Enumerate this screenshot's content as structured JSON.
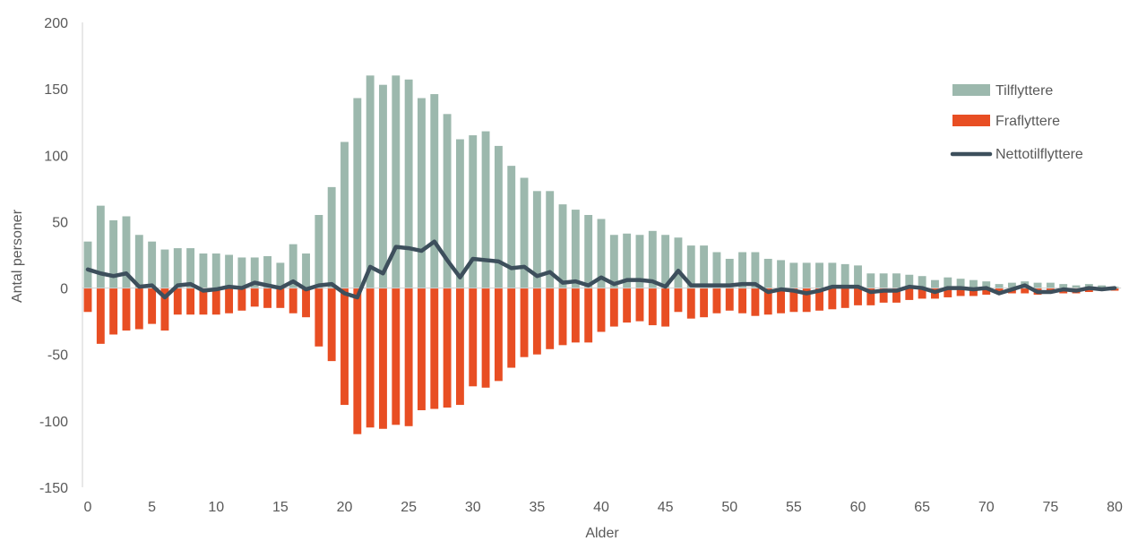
{
  "chart_data": {
    "type": "bar",
    "xlabel": "Alder",
    "ylabel": "Antal personer",
    "ylim": [
      -150,
      200
    ],
    "yticks": [
      -150,
      -100,
      -50,
      0,
      50,
      100,
      150,
      200
    ],
    "xticks": [
      0,
      5,
      10,
      15,
      20,
      25,
      30,
      35,
      40,
      45,
      50,
      55,
      60,
      65,
      70,
      75,
      80
    ],
    "x": [
      0,
      1,
      2,
      3,
      4,
      5,
      6,
      7,
      8,
      9,
      10,
      11,
      12,
      13,
      14,
      15,
      16,
      17,
      18,
      19,
      20,
      21,
      22,
      23,
      24,
      25,
      26,
      27,
      28,
      29,
      30,
      31,
      32,
      33,
      34,
      35,
      36,
      37,
      38,
      39,
      40,
      41,
      42,
      43,
      44,
      45,
      46,
      47,
      48,
      49,
      50,
      51,
      52,
      53,
      54,
      55,
      56,
      57,
      58,
      59,
      60,
      61,
      62,
      63,
      64,
      65,
      66,
      67,
      68,
      69,
      70,
      71,
      72,
      73,
      74,
      75,
      76,
      77,
      78,
      79,
      80
    ],
    "legend_position": "right",
    "grid": false,
    "series": [
      {
        "name": "Tilflyttere",
        "type": "bar",
        "color": "#9cb8ad",
        "values": [
          35,
          62,
          51,
          54,
          40,
          35,
          29,
          30,
          30,
          26,
          26,
          25,
          23,
          23,
          24,
          19,
          33,
          26,
          55,
          76,
          110,
          143,
          160,
          153,
          160,
          157,
          143,
          146,
          131,
          112,
          115,
          118,
          107,
          92,
          83,
          73,
          73,
          63,
          59,
          55,
          52,
          40,
          41,
          40,
          43,
          40,
          38,
          32,
          32,
          27,
          22,
          27,
          27,
          22,
          21,
          19,
          19,
          19,
          19,
          18,
          17,
          11,
          11,
          11,
          10,
          9,
          6,
          8,
          7,
          6,
          5,
          3,
          4,
          5,
          4,
          4,
          3,
          2,
          3,
          2,
          1
        ]
      },
      {
        "name": "Fraflyttere",
        "type": "bar",
        "color": "#e84e23",
        "values": [
          -18,
          -42,
          -35,
          -32,
          -31,
          -27,
          -32,
          -20,
          -20,
          -20,
          -20,
          -19,
          -17,
          -14,
          -15,
          -15,
          -19,
          -22,
          -44,
          -55,
          -88,
          -110,
          -105,
          -106,
          -103,
          -104,
          -92,
          -91,
          -90,
          -88,
          -74,
          -75,
          -70,
          -60,
          -52,
          -50,
          -46,
          -43,
          -41,
          -41,
          -33,
          -29,
          -26,
          -25,
          -28,
          -29,
          -18,
          -23,
          -22,
          -19,
          -17,
          -19,
          -21,
          -20,
          -19,
          -18,
          -18,
          -17,
          -16,
          -15,
          -13,
          -13,
          -11,
          -11,
          -9,
          -8,
          -8,
          -7,
          -6,
          -6,
          -5,
          -4,
          -4,
          -4,
          -5,
          -4,
          -4,
          -4,
          -3,
          -2,
          -2
        ]
      },
      {
        "name": "Nettotilflyttere",
        "type": "line",
        "color": "#3d4f5c",
        "values": [
          14,
          11,
          9,
          11,
          1,
          2,
          -7,
          2,
          3,
          -2,
          -1,
          1,
          0,
          4,
          2,
          0,
          5,
          -1,
          2,
          3,
          -4,
          -7,
          16,
          11,
          31,
          30,
          28,
          35,
          21,
          8,
          22,
          21,
          20,
          15,
          16,
          9,
          12,
          4,
          5,
          2,
          8,
          3,
          6,
          6,
          5,
          1,
          13,
          2,
          2,
          2,
          2,
          3,
          3,
          -3,
          -1,
          -2,
          -4,
          -2,
          1,
          1,
          1,
          -3,
          -2,
          -2,
          1,
          0,
          -3,
          0,
          0,
          -1,
          0,
          -4,
          -1,
          2,
          -3,
          -3,
          -1,
          -2,
          0,
          -1,
          0
        ]
      }
    ]
  }
}
